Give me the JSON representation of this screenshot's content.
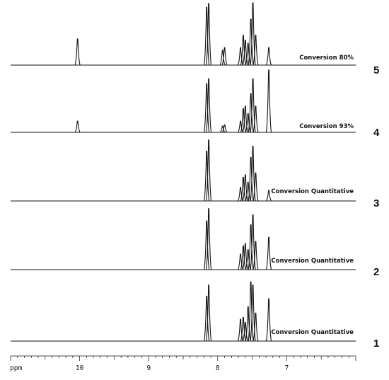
{
  "chart_data": {
    "type": "line",
    "xlabel": "ppm",
    "xlim": [
      11.0,
      6.0
    ],
    "x_ticks": [
      "10",
      "9",
      "8",
      "7"
    ],
    "grid": false,
    "series": [
      {
        "name": "5",
        "label": "Conversion 80%",
        "peaks": [
          {
            "ppm": 10.03,
            "height": 0.42
          },
          {
            "ppm": 8.16,
            "height": 0.93
          },
          {
            "ppm": 8.13,
            "height": 0.99
          },
          {
            "ppm": 7.93,
            "height": 0.24
          },
          {
            "ppm": 7.9,
            "height": 0.28
          },
          {
            "ppm": 7.67,
            "height": 0.28
          },
          {
            "ppm": 7.63,
            "height": 0.48
          },
          {
            "ppm": 7.6,
            "height": 0.4
          },
          {
            "ppm": 7.56,
            "height": 0.35
          },
          {
            "ppm": 7.52,
            "height": 0.74
          },
          {
            "ppm": 7.49,
            "height": 1.0
          },
          {
            "ppm": 7.45,
            "height": 0.48
          },
          {
            "ppm": 7.26,
            "height": 0.28
          }
        ]
      },
      {
        "name": "4",
        "label": "Conversion 93%",
        "peaks": [
          {
            "ppm": 10.03,
            "height": 0.18
          },
          {
            "ppm": 8.16,
            "height": 0.78
          },
          {
            "ppm": 8.13,
            "height": 0.86
          },
          {
            "ppm": 7.93,
            "height": 0.1
          },
          {
            "ppm": 7.9,
            "height": 0.12
          },
          {
            "ppm": 7.67,
            "height": 0.18
          },
          {
            "ppm": 7.63,
            "height": 0.38
          },
          {
            "ppm": 7.6,
            "height": 0.42
          },
          {
            "ppm": 7.56,
            "height": 0.3
          },
          {
            "ppm": 7.52,
            "height": 0.62
          },
          {
            "ppm": 7.49,
            "height": 0.86
          },
          {
            "ppm": 7.45,
            "height": 0.42
          },
          {
            "ppm": 7.26,
            "height": 1.0
          }
        ]
      },
      {
        "name": "3",
        "label": "Conversion Quantitative",
        "peaks": [
          {
            "ppm": 8.16,
            "height": 0.8
          },
          {
            "ppm": 8.13,
            "height": 0.98
          },
          {
            "ppm": 7.67,
            "height": 0.22
          },
          {
            "ppm": 7.63,
            "height": 0.38
          },
          {
            "ppm": 7.6,
            "height": 0.42
          },
          {
            "ppm": 7.56,
            "height": 0.3
          },
          {
            "ppm": 7.52,
            "height": 0.7
          },
          {
            "ppm": 7.49,
            "height": 0.88
          },
          {
            "ppm": 7.45,
            "height": 0.45
          },
          {
            "ppm": 7.26,
            "height": 0.17
          }
        ]
      },
      {
        "name": "2",
        "label": "Conversion Quantitative",
        "peaks": [
          {
            "ppm": 8.16,
            "height": 0.78
          },
          {
            "ppm": 8.13,
            "height": 0.98
          },
          {
            "ppm": 7.67,
            "height": 0.25
          },
          {
            "ppm": 7.63,
            "height": 0.38
          },
          {
            "ppm": 7.6,
            "height": 0.42
          },
          {
            "ppm": 7.56,
            "height": 0.32
          },
          {
            "ppm": 7.52,
            "height": 0.72
          },
          {
            "ppm": 7.49,
            "height": 0.88
          },
          {
            "ppm": 7.45,
            "height": 0.45
          },
          {
            "ppm": 7.26,
            "height": 0.52
          }
        ]
      },
      {
        "name": "1",
        "label": "Conversion Quantitative",
        "peaks": [
          {
            "ppm": 8.16,
            "height": 0.72
          },
          {
            "ppm": 8.13,
            "height": 0.9
          },
          {
            "ppm": 7.67,
            "height": 0.35
          },
          {
            "ppm": 7.63,
            "height": 0.38
          },
          {
            "ppm": 7.6,
            "height": 0.3
          },
          {
            "ppm": 7.56,
            "height": 0.55
          },
          {
            "ppm": 7.52,
            "height": 0.95
          },
          {
            "ppm": 7.49,
            "height": 0.9
          },
          {
            "ppm": 7.45,
            "height": 0.45
          },
          {
            "ppm": 7.26,
            "height": 0.68
          }
        ]
      }
    ]
  }
}
